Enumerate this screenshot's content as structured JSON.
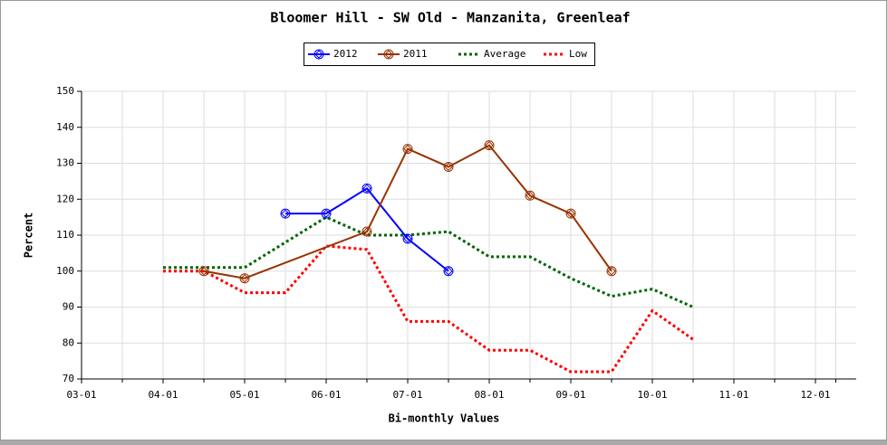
{
  "chart_data": {
    "type": "line",
    "title": "Bloomer Hill - SW Old - Manzanita, Greenleaf",
    "xlabel": "Bi-monthly Values",
    "ylabel": "Percent",
    "xlim": [
      3,
      12.5
    ],
    "xticks": [
      {
        "value": 3,
        "label": "03-01"
      },
      {
        "value": 4,
        "label": "04-01"
      },
      {
        "value": 5,
        "label": "05-01"
      },
      {
        "value": 6,
        "label": "06-01"
      },
      {
        "value": 7,
        "label": "07-01"
      },
      {
        "value": 8,
        "label": "08-01"
      },
      {
        "value": 9,
        "label": "09-01"
      },
      {
        "value": 10,
        "label": "10-01"
      },
      {
        "value": 11,
        "label": "11-01"
      },
      {
        "value": 12,
        "label": "12-01"
      }
    ],
    "ylim": [
      70,
      150
    ],
    "yticks": [
      70,
      80,
      90,
      100,
      110,
      120,
      130,
      140,
      150
    ],
    "grid": true,
    "legend": "top",
    "series": [
      {
        "name": "2012",
        "color": "#0000ff",
        "style": "marker",
        "x": [
          5.5,
          6,
          6.5,
          7,
          7.5
        ],
        "values": [
          116,
          116,
          123,
          109,
          100
        ]
      },
      {
        "name": "2011",
        "color": "#993300",
        "style": "marker",
        "x": [
          4.5,
          5,
          6.5,
          7,
          7.5,
          8,
          8.5,
          9,
          9.5
        ],
        "values": [
          100,
          98,
          111,
          134,
          129,
          135,
          121,
          116,
          100
        ]
      },
      {
        "name": "Average",
        "color": "#006600",
        "style": "dash",
        "x": [
          4,
          4.5,
          5,
          5.5,
          6,
          6.5,
          7,
          7.5,
          8,
          8.5,
          9,
          9.5,
          10,
          10.5
        ],
        "values": [
          101,
          101,
          101,
          108,
          115,
          110,
          110,
          111,
          104,
          104,
          98,
          93,
          95,
          90
        ]
      },
      {
        "name": "Low",
        "color": "#ff0000",
        "style": "dash",
        "x": [
          4,
          4.5,
          5,
          5.5,
          6,
          6.5,
          7,
          7.5,
          8,
          8.5,
          9,
          9.5,
          10,
          10.5
        ],
        "values": [
          100,
          100,
          94,
          94,
          107,
          106,
          86,
          86,
          78,
          78,
          72,
          72,
          89,
          81
        ]
      }
    ]
  }
}
